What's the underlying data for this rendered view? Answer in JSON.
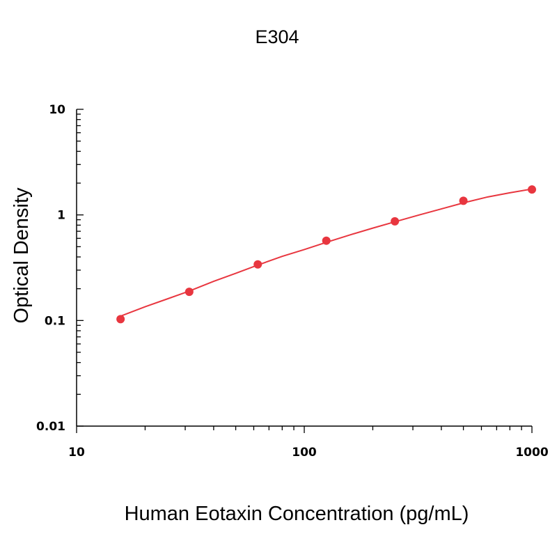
{
  "chart_data": {
    "type": "scatter",
    "title": "E304",
    "xlabel": "Human Eotaxin Concentration (pg/mL)",
    "ylabel": "Optical Density",
    "x_scale": "log",
    "y_scale": "log",
    "xlim": [
      10,
      1000
    ],
    "ylim": [
      0.01,
      10
    ],
    "x_ticks": [
      10,
      100,
      1000
    ],
    "x_tick_labels": [
      "10",
      "100",
      "1000"
    ],
    "y_ticks": [
      0.01,
      0.1,
      1,
      10
    ],
    "y_tick_labels": [
      "0.01",
      "0.1",
      "1",
      "10"
    ],
    "grid": false,
    "color": "#e8363f",
    "series": [
      {
        "x": [
          15.6,
          31.25,
          62.5,
          125,
          250,
          500,
          1000
        ],
        "y": [
          0.103,
          0.187,
          0.34,
          0.57,
          0.87,
          1.36,
          1.74
        ]
      }
    ],
    "fit_curve": {
      "x": [
        15.6,
        20,
        25,
        31.25,
        40,
        50,
        62.5,
        80,
        100,
        125,
        160,
        200,
        250,
        320,
        400,
        500,
        640,
        800,
        1000
      ],
      "y": [
        0.11,
        0.135,
        0.16,
        0.19,
        0.235,
        0.28,
        0.335,
        0.405,
        0.47,
        0.55,
        0.65,
        0.75,
        0.86,
        1.0,
        1.14,
        1.3,
        1.48,
        1.62,
        1.76
      ]
    }
  }
}
